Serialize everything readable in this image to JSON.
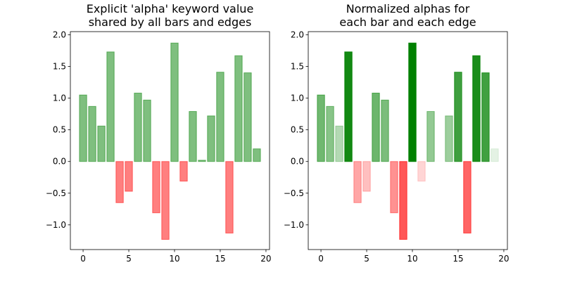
{
  "chart_data": [
    {
      "type": "bar",
      "title": [
        "Explicit 'alpha' keyword value",
        "shared by all bars and edges"
      ],
      "x": [
        0,
        1,
        2,
        3,
        4,
        5,
        6,
        7,
        8,
        9,
        10,
        11,
        12,
        13,
        14,
        15,
        16,
        17,
        18,
        19
      ],
      "values": [
        1.05,
        0.87,
        0.56,
        1.73,
        -0.65,
        -0.47,
        1.08,
        0.97,
        -0.81,
        -1.23,
        1.87,
        -0.31,
        0.79,
        0.02,
        0.72,
        1.41,
        -1.13,
        1.67,
        1.4,
        0.2
      ],
      "positive_color": "green",
      "negative_color": "red",
      "alpha": 0.5,
      "xlim": [
        -1.39,
        20.39
      ],
      "xticks": [
        0,
        5,
        10,
        15,
        20
      ],
      "ylim": [
        -1.39,
        2.05
      ],
      "yticks": [
        {
          "value": -1,
          "label": "−1.0"
        },
        {
          "value": -0.5,
          "label": "−0.5"
        },
        {
          "value": 0,
          "label": "0.0"
        },
        {
          "value": 0.5,
          "label": "0.5"
        },
        {
          "value": 1,
          "label": "1.0"
        },
        {
          "value": 1.5,
          "label": "1.5"
        },
        {
          "value": 2,
          "label": "2.0"
        }
      ]
    },
    {
      "type": "bar",
      "title": [
        "Normalized alphas for",
        "each bar and each edge"
      ],
      "x": [
        0,
        1,
        2,
        3,
        4,
        5,
        6,
        7,
        8,
        9,
        10,
        11,
        12,
        13,
        14,
        15,
        16,
        17,
        18,
        19
      ],
      "values": [
        1.05,
        0.87,
        0.56,
        1.73,
        -0.65,
        -0.47,
        1.08,
        0.97,
        -0.81,
        -1.23,
        1.87,
        -0.31,
        0.79,
        0.02,
        0.72,
        1.41,
        -1.13,
        1.67,
        1.4,
        0.2
      ],
      "positive_color": "green",
      "negative_color": "red",
      "xlim": [
        -1.39,
        20.39
      ],
      "xticks": [
        0,
        5,
        10,
        15,
        20
      ],
      "ylim": [
        -1.39,
        2.05
      ],
      "yticks": [
        {
          "value": -1,
          "label": "−1.0"
        },
        {
          "value": -0.5,
          "label": "−0.5"
        },
        {
          "value": 0,
          "label": "0.0"
        },
        {
          "value": 0.5,
          "label": "0.5"
        },
        {
          "value": 1,
          "label": "1.0"
        },
        {
          "value": 1.5,
          "label": "1.5"
        },
        {
          "value": 2,
          "label": "2.0"
        }
      ]
    }
  ]
}
